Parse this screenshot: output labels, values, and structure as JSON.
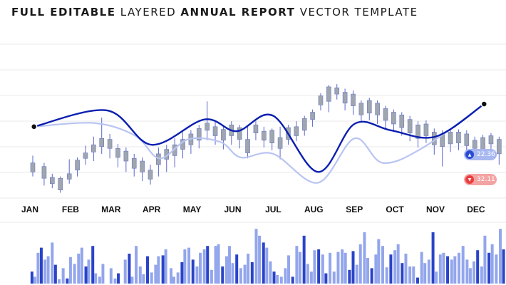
{
  "title": {
    "part1": "FULL EDITABLE",
    "part2": "LAYERED",
    "part3": "ANNUAL REPORT",
    "part4": "VECTOR TEMPLATE"
  },
  "badges": {
    "up": {
      "value": "22.36",
      "icon": "triangle-up-icon",
      "color": "#2a4bd1"
    },
    "down": {
      "value": "32.11",
      "icon": "triangle-down-icon",
      "color": "#ea3d3d"
    }
  },
  "colors": {
    "dark_line": "#0a1eb0",
    "light_line": "#b9c4f2",
    "candle": "#9fa6ad",
    "wick": "#5866cc",
    "bar_dark": "#2a44c8",
    "bar_light": "#93a6ec",
    "grid": "#e9e9e9"
  },
  "chart_data": {
    "type": "line",
    "categories": [
      "JAN",
      "FEB",
      "MAR",
      "APR",
      "MAY",
      "JUN",
      "JUL",
      "AUG",
      "SEP",
      "OCT",
      "NOV",
      "DEC"
    ],
    "ylim": [
      0,
      100
    ],
    "grid": true,
    "series": [
      {
        "points": [
          [
            0.1,
            60
          ],
          [
            1.9,
            78
          ],
          [
            3.0,
            40
          ],
          [
            4.3,
            68
          ],
          [
            5.1,
            55
          ],
          [
            6.0,
            72
          ],
          [
            7.1,
            10
          ],
          [
            8.0,
            63
          ],
          [
            8.9,
            56
          ],
          [
            10.0,
            49
          ],
          [
            11.2,
            85
          ]
        ]
      },
      {
        "points": [
          [
            0.1,
            60
          ],
          [
            1.6,
            64
          ],
          [
            2.6,
            50
          ],
          [
            3.2,
            25
          ],
          [
            3.9,
            46
          ],
          [
            4.7,
            43
          ],
          [
            5.2,
            26
          ],
          [
            6.0,
            30
          ],
          [
            7.1,
            -2
          ],
          [
            8.0,
            47
          ],
          [
            8.7,
            20
          ],
          [
            9.7,
            37
          ],
          [
            11.2,
            85
          ]
        ]
      }
    ],
    "candles": [
      [
        0.07,
        20,
        10,
        28,
        5
      ],
      [
        0.35,
        16,
        3,
        20,
        -5
      ],
      [
        0.55,
        4,
        -3,
        8,
        -8
      ],
      [
        0.75,
        3,
        -10,
        5,
        -13
      ],
      [
        0.97,
        8,
        2,
        24,
        -3
      ],
      [
        1.17,
        23,
        12,
        26,
        5
      ],
      [
        1.37,
        31,
        25,
        39,
        18
      ],
      [
        1.57,
        40,
        32,
        49,
        22
      ],
      [
        1.77,
        47,
        38,
        70,
        30
      ],
      [
        1.97,
        46,
        36,
        52,
        25
      ],
      [
        2.17,
        36,
        26,
        41,
        15
      ],
      [
        2.37,
        33,
        22,
        37,
        10
      ],
      [
        2.57,
        25,
        14,
        30,
        5
      ],
      [
        2.77,
        22,
        10,
        26,
        0
      ],
      [
        2.97,
        12,
        2,
        18,
        -4
      ],
      [
        3.17,
        30,
        18,
        37,
        5
      ],
      [
        3.37,
        35,
        24,
        40,
        10
      ],
      [
        3.57,
        40,
        28,
        47,
        15
      ],
      [
        3.77,
        46,
        35,
        54,
        25
      ],
      [
        3.97,
        52,
        40,
        56,
        30
      ],
      [
        4.17,
        58,
        45,
        62,
        36
      ],
      [
        4.37,
        64,
        56,
        88,
        45
      ],
      [
        4.57,
        60,
        50,
        66,
        40
      ],
      [
        4.77,
        57,
        45,
        62,
        35
      ],
      [
        4.97,
        62,
        50,
        66,
        40
      ],
      [
        5.17,
        59,
        46,
        62,
        36
      ],
      [
        5.37,
        46,
        31,
        60,
        25
      ],
      [
        5.57,
        62,
        53,
        66,
        45
      ],
      [
        5.77,
        55,
        45,
        60,
        37
      ],
      [
        5.97,
        56,
        42,
        58,
        34
      ],
      [
        6.17,
        48,
        36,
        60,
        24
      ],
      [
        6.37,
        59,
        46,
        62,
        40
      ],
      [
        6.57,
        60,
        50,
        66,
        44
      ],
      [
        6.77,
        69,
        56,
        72,
        50
      ],
      [
        6.97,
        76,
        68,
        79,
        60
      ],
      [
        7.17,
        94,
        84,
        97,
        78
      ],
      [
        7.37,
        104,
        88,
        106,
        76
      ],
      [
        7.57,
        103,
        96,
        107,
        90
      ],
      [
        7.77,
        98,
        86,
        102,
        78
      ],
      [
        7.97,
        96,
        83,
        100,
        73
      ],
      [
        8.17,
        86,
        73,
        89,
        66
      ],
      [
        8.37,
        89,
        75,
        92,
        67
      ],
      [
        8.57,
        86,
        73,
        89,
        63
      ],
      [
        8.77,
        80,
        67,
        83,
        58
      ],
      [
        8.97,
        76,
        63,
        79,
        54
      ],
      [
        9.17,
        73,
        59,
        76,
        50
      ],
      [
        9.37,
        68,
        53,
        72,
        44
      ],
      [
        9.57,
        62,
        47,
        66,
        37
      ],
      [
        9.77,
        63,
        50,
        67,
        42
      ],
      [
        9.97,
        54,
        40,
        58,
        29
      ],
      [
        10.17,
        52,
        38,
        56,
        16
      ],
      [
        10.37,
        54,
        41,
        58,
        32
      ],
      [
        10.57,
        54,
        42,
        57,
        34
      ],
      [
        10.77,
        52,
        39,
        56,
        28
      ],
      [
        10.97,
        45,
        36,
        49,
        27
      ],
      [
        11.17,
        48,
        32,
        51,
        24
      ],
      [
        11.37,
        50,
        41,
        53,
        33
      ],
      [
        11.57,
        46,
        30,
        49,
        18
      ]
    ],
    "bars": [
      [
        0.05,
        14,
        1
      ],
      [
        0.12,
        8,
        0
      ],
      [
        0.2,
        36,
        0
      ],
      [
        0.28,
        42,
        1
      ],
      [
        0.37,
        28,
        0
      ],
      [
        0.45,
        32,
        0
      ],
      [
        0.55,
        48,
        0
      ],
      [
        0.63,
        22,
        1
      ],
      [
        0.72,
        5,
        0
      ],
      [
        0.82,
        18,
        0
      ],
      [
        0.92,
        6,
        1
      ],
      [
        1.0,
        31,
        0
      ],
      [
        1.1,
        23,
        0
      ],
      [
        1.2,
        35,
        0
      ],
      [
        1.28,
        42,
        0
      ],
      [
        1.38,
        20,
        1
      ],
      [
        1.45,
        28,
        0
      ],
      [
        1.55,
        44,
        1
      ],
      [
        1.62,
        12,
        0
      ],
      [
        1.72,
        8,
        0
      ],
      [
        1.8,
        23,
        0
      ],
      [
        2.0,
        18,
        0
      ],
      [
        2.1,
        6,
        0
      ],
      [
        2.18,
        12,
        1
      ],
      [
        2.35,
        28,
        0
      ],
      [
        2.45,
        35,
        1
      ],
      [
        2.52,
        8,
        0
      ],
      [
        2.62,
        44,
        0
      ],
      [
        2.72,
        20,
        0
      ],
      [
        2.8,
        11,
        0
      ],
      [
        2.9,
        32,
        1
      ],
      [
        3.0,
        13,
        0
      ],
      [
        3.1,
        22,
        0
      ],
      [
        3.17,
        32,
        0
      ],
      [
        3.28,
        33,
        1
      ],
      [
        3.35,
        40,
        0
      ],
      [
        3.48,
        18,
        0
      ],
      [
        3.55,
        8,
        0
      ],
      [
        3.65,
        13,
        0
      ],
      [
        3.75,
        25,
        1
      ],
      [
        3.82,
        40,
        0
      ],
      [
        3.92,
        42,
        0
      ],
      [
        4.02,
        28,
        1
      ],
      [
        4.12,
        20,
        0
      ],
      [
        4.2,
        36,
        0
      ],
      [
        4.3,
        40,
        0
      ],
      [
        4.38,
        44,
        1
      ],
      [
        4.48,
        16,
        0
      ],
      [
        4.58,
        44,
        0
      ],
      [
        4.65,
        46,
        0
      ],
      [
        4.75,
        20,
        1
      ],
      [
        4.85,
        32,
        0
      ],
      [
        4.92,
        44,
        0
      ],
      [
        5.0,
        24,
        0
      ],
      [
        5.1,
        34,
        1
      ],
      [
        5.2,
        18,
        0
      ],
      [
        5.3,
        22,
        0
      ],
      [
        5.38,
        35,
        0
      ],
      [
        5.48,
        25,
        1
      ],
      [
        5.58,
        64,
        0
      ],
      [
        5.66,
        56,
        0
      ],
      [
        5.76,
        48,
        1
      ],
      [
        5.84,
        42,
        0
      ],
      [
        5.93,
        26,
        0
      ],
      [
        6.02,
        14,
        1
      ],
      [
        6.1,
        10,
        0
      ],
      [
        6.2,
        8,
        0
      ],
      [
        6.3,
        18,
        0
      ],
      [
        6.38,
        33,
        0
      ],
      [
        6.48,
        8,
        1
      ],
      [
        6.58,
        44,
        0
      ],
      [
        6.66,
        37,
        0
      ],
      [
        6.76,
        56,
        1
      ],
      [
        6.85,
        23,
        0
      ],
      [
        6.94,
        14,
        0
      ],
      [
        7.02,
        39,
        0
      ],
      [
        7.12,
        40,
        1
      ],
      [
        7.22,
        34,
        0
      ],
      [
        7.3,
        12,
        1
      ],
      [
        7.4,
        36,
        0
      ],
      [
        7.5,
        14,
        0
      ],
      [
        7.6,
        37,
        0
      ],
      [
        7.7,
        40,
        0
      ],
      [
        7.78,
        36,
        0
      ],
      [
        7.88,
        16,
        1
      ],
      [
        7.97,
        38,
        1
      ],
      [
        8.06,
        22,
        0
      ],
      [
        8.15,
        46,
        0
      ],
      [
        8.25,
        60,
        0
      ],
      [
        8.33,
        30,
        0
      ],
      [
        8.43,
        18,
        1
      ],
      [
        8.53,
        34,
        0
      ],
      [
        8.6,
        52,
        0
      ],
      [
        8.7,
        44,
        0
      ],
      [
        8.8,
        19,
        0
      ],
      [
        8.9,
        34,
        1
      ],
      [
        9.0,
        39,
        0
      ],
      [
        9.08,
        46,
        0
      ],
      [
        9.18,
        24,
        1
      ],
      [
        9.27,
        35,
        0
      ],
      [
        9.37,
        20,
        0
      ],
      [
        9.46,
        20,
        0
      ],
      [
        9.56,
        7,
        1
      ],
      [
        9.66,
        37,
        0
      ],
      [
        9.74,
        24,
        0
      ],
      [
        9.84,
        28,
        0
      ],
      [
        9.94,
        60,
        1
      ],
      [
        10.02,
        14,
        0
      ],
      [
        10.12,
        34,
        0
      ],
      [
        10.2,
        36,
        0
      ],
      [
        10.3,
        32,
        1
      ],
      [
        10.4,
        28,
        0
      ],
      [
        10.48,
        32,
        0
      ],
      [
        10.58,
        36,
        0
      ],
      [
        10.68,
        44,
        0
      ],
      [
        10.78,
        28,
        0
      ],
      [
        10.86,
        18,
        0
      ],
      [
        10.95,
        26,
        0
      ],
      [
        11.04,
        39,
        1
      ],
      [
        11.14,
        20,
        0
      ],
      [
        11.22,
        56,
        0
      ],
      [
        11.32,
        36,
        1
      ],
      [
        11.4,
        46,
        0
      ],
      [
        11.5,
        34,
        0
      ],
      [
        11.6,
        64,
        0
      ],
      [
        11.68,
        40,
        1
      ]
    ]
  }
}
